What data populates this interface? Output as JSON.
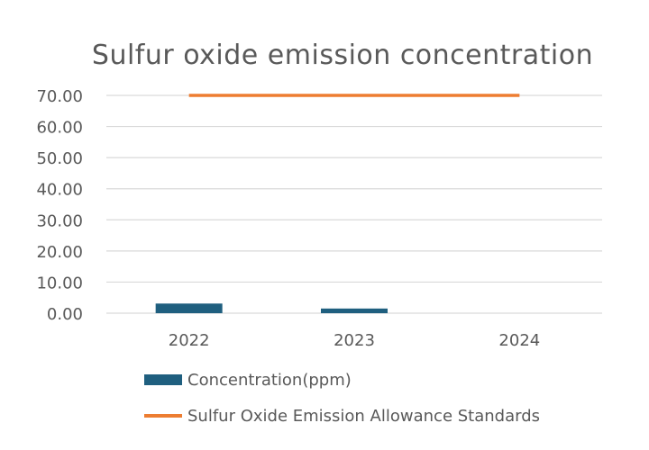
{
  "chart_data": {
    "type": "bar",
    "title": "Sulfur oxide emission concentration",
    "categories": [
      "2022",
      "2023",
      "2024"
    ],
    "ylim": [
      0,
      70
    ],
    "yticks": [
      "0.00",
      "10.00",
      "20.00",
      "30.00",
      "40.00",
      "50.00",
      "60.00",
      "70.00"
    ],
    "grid": true,
    "legend_position": "bottom",
    "series": [
      {
        "name": "Concentration(ppm)",
        "type": "bar",
        "color": "#1f5f7f",
        "values": [
          3.1,
          1.5,
          0
        ]
      },
      {
        "name": "Sulfur Oxide Emission Allowance Standards",
        "type": "line",
        "color": "#ed7d31",
        "values": [
          70,
          70,
          70
        ]
      }
    ]
  }
}
